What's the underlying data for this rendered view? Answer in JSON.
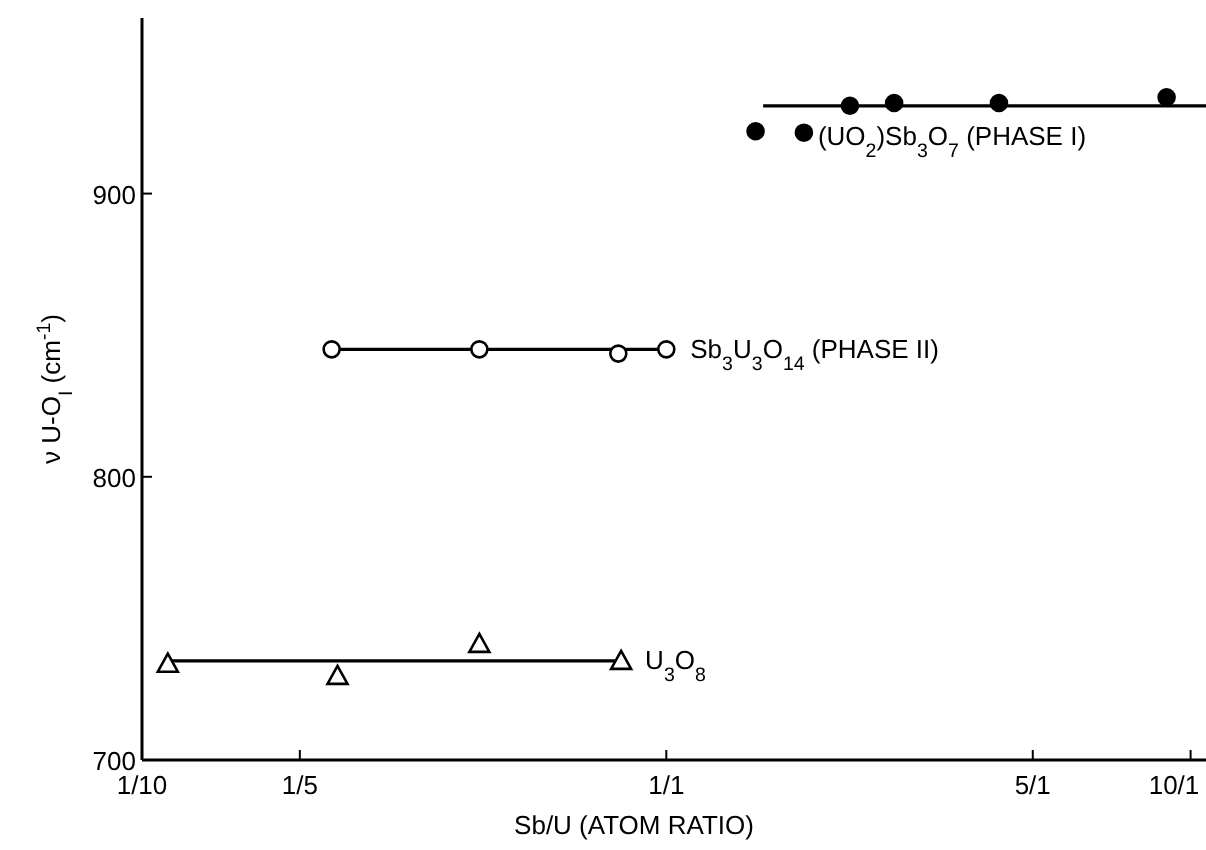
{
  "chart_data": {
    "type": "scatter",
    "xlabel": "Sb/U (ATOM RATIO)",
    "ylabel": "ν U-O$_{I}$ (cm$^{-1}$)",
    "log": "x",
    "xlim": [
      0.1,
      10.7
    ],
    "ylim": [
      700,
      962
    ],
    "xticks": [
      {
        "value": 0.1,
        "label": "1/10"
      },
      {
        "value": 0.2,
        "label": "1/5"
      },
      {
        "value": 1,
        "label": "1/1"
      },
      {
        "value": 5,
        "label": "5/1"
      },
      {
        "value": 10,
        "label": "10/1"
      }
    ],
    "yticks": [
      700,
      800,
      900
    ],
    "grid": false,
    "legend": false,
    "series": [
      {
        "type": "line",
        "color": "#000000",
        "marker": "none",
        "x": [
          1.53,
          10.7
        ],
        "values": [
          931,
          931
        ]
      },
      {
        "type": "line",
        "color": "#000000",
        "marker": "none",
        "x": [
          0.23,
          1.0
        ],
        "values": [
          845,
          845
        ]
      },
      {
        "type": "line",
        "color": "#000000",
        "marker": "none",
        "x": [
          0.112,
          0.82
        ],
        "values": [
          735,
          735
        ]
      },
      {
        "name": "(UO$_{2}$)Sb$_{3}$O$_{7}$   (PHASE I)",
        "color": "#000000",
        "marker": "circle",
        "x": [
          1.48,
          1.83,
          2.24,
          2.72,
          4.31,
          9.0
        ],
        "values": [
          922,
          921.5,
          931,
          932,
          932,
          934
        ]
      },
      {
        "name": "Sb$_{3}$U$_{3}$O$_{14}$ (PHASE II)",
        "color": "#ffffff",
        "marker": "circle",
        "x": [
          0.23,
          0.44,
          0.81,
          1.0
        ],
        "values": [
          845,
          845,
          843.5,
          845
        ]
      },
      {
        "name": "U$_{3}$O$_{8}$",
        "color": "#ffffff",
        "marker": "triangle",
        "x": [
          0.112,
          0.236,
          0.44,
          0.82
        ],
        "values": [
          734,
          729.7,
          741,
          735
        ]
      }
    ]
  }
}
